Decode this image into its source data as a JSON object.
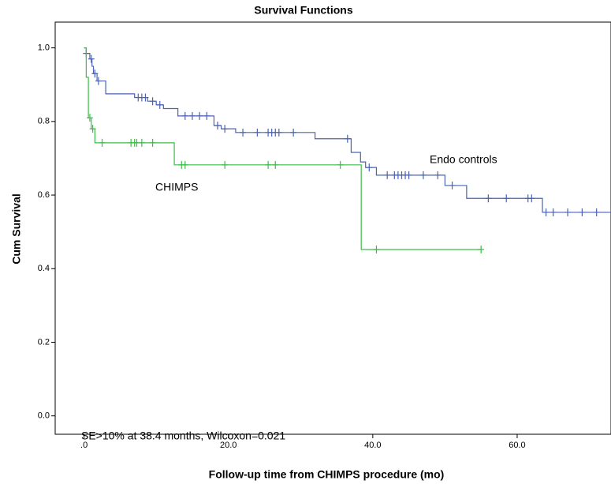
{
  "chart_data": {
    "type": "step",
    "title": "Survival Functions",
    "x_label": "Follow-up time from CHIMPS procedure (mo)",
    "y_label": "Cum Survival",
    "annotation": "SE>10% at 38.4 months, Wilcoxon=0.021",
    "xlim": [
      -4,
      73
    ],
    "ylim": [
      -0.05,
      1.07
    ],
    "xticks": [
      {
        "value": 0,
        "label": ".0"
      },
      {
        "value": 20,
        "label": "20.0"
      },
      {
        "value": 40,
        "label": "40.0"
      },
      {
        "value": 60,
        "label": "60.0"
      }
    ],
    "yticks": [
      {
        "value": 0,
        "label": "0.0"
      },
      {
        "value": 0.2,
        "label": "0.2"
      },
      {
        "value": 0.4,
        "label": "0.4"
      },
      {
        "value": 0.6,
        "label": "0.6"
      },
      {
        "value": 0.8,
        "label": "0.8"
      },
      {
        "value": 1,
        "label": "1.0"
      }
    ],
    "series": [
      {
        "name": "Endo controls",
        "color": "#4a63b3",
        "x": [
          0,
          0.3,
          0.8,
          1.1,
          1.3,
          1.8,
          3,
          7,
          8.8,
          10,
          11,
          13,
          18,
          19,
          21,
          32,
          37,
          38.3,
          39,
          40.5,
          50,
          53,
          63.5,
          73
        ],
        "values": [
          1,
          0.985,
          0.97,
          0.95,
          0.93,
          0.91,
          0.875,
          0.865,
          0.855,
          0.845,
          0.835,
          0.815,
          0.789,
          0.78,
          0.77,
          0.753,
          0.716,
          0.69,
          0.675,
          0.654,
          0.626,
          0.591,
          0.553,
          0.553
        ],
        "censor_x": [
          0.3,
          1,
          1.5,
          2,
          7.5,
          8,
          8.5,
          9.5,
          10.5,
          14,
          15,
          16,
          17,
          18.5,
          19.5,
          22,
          24,
          25.5,
          26,
          26.5,
          27,
          29,
          36.5,
          39.5,
          42,
          43,
          43.5,
          44,
          44.5,
          45,
          47,
          49,
          51,
          56,
          58.5,
          61.5,
          62,
          64,
          65,
          67,
          69,
          71
        ],
        "censor_values": [
          0.985,
          0.97,
          0.93,
          0.91,
          0.865,
          0.865,
          0.865,
          0.855,
          0.845,
          0.815,
          0.815,
          0.815,
          0.815,
          0.789,
          0.78,
          0.77,
          0.77,
          0.77,
          0.77,
          0.77,
          0.77,
          0.77,
          0.753,
          0.675,
          0.654,
          0.654,
          0.654,
          0.654,
          0.654,
          0.654,
          0.654,
          0.654,
          0.626,
          0.591,
          0.591,
          0.591,
          0.591,
          0.553,
          0.553,
          0.553,
          0.553,
          0.553
        ]
      },
      {
        "name": "CHIMPS",
        "color": "#3dbb4a",
        "x": [
          0,
          0.3,
          0.6,
          1,
          1.5,
          12.5,
          38.4,
          55
        ],
        "values": [
          1,
          0.92,
          0.81,
          0.78,
          0.742,
          0.682,
          0.452,
          0.452
        ],
        "censor_x": [
          0.8,
          1.2,
          2.5,
          6.5,
          7,
          7.3,
          8,
          9.5,
          13.5,
          14,
          19.5,
          25.5,
          26.5,
          35.5,
          40.5,
          55
        ],
        "censor_values": [
          0.81,
          0.78,
          0.742,
          0.742,
          0.742,
          0.742,
          0.742,
          0.742,
          0.682,
          0.682,
          0.682,
          0.682,
          0.682,
          0.682,
          0.452,
          0.452
        ]
      }
    ]
  }
}
